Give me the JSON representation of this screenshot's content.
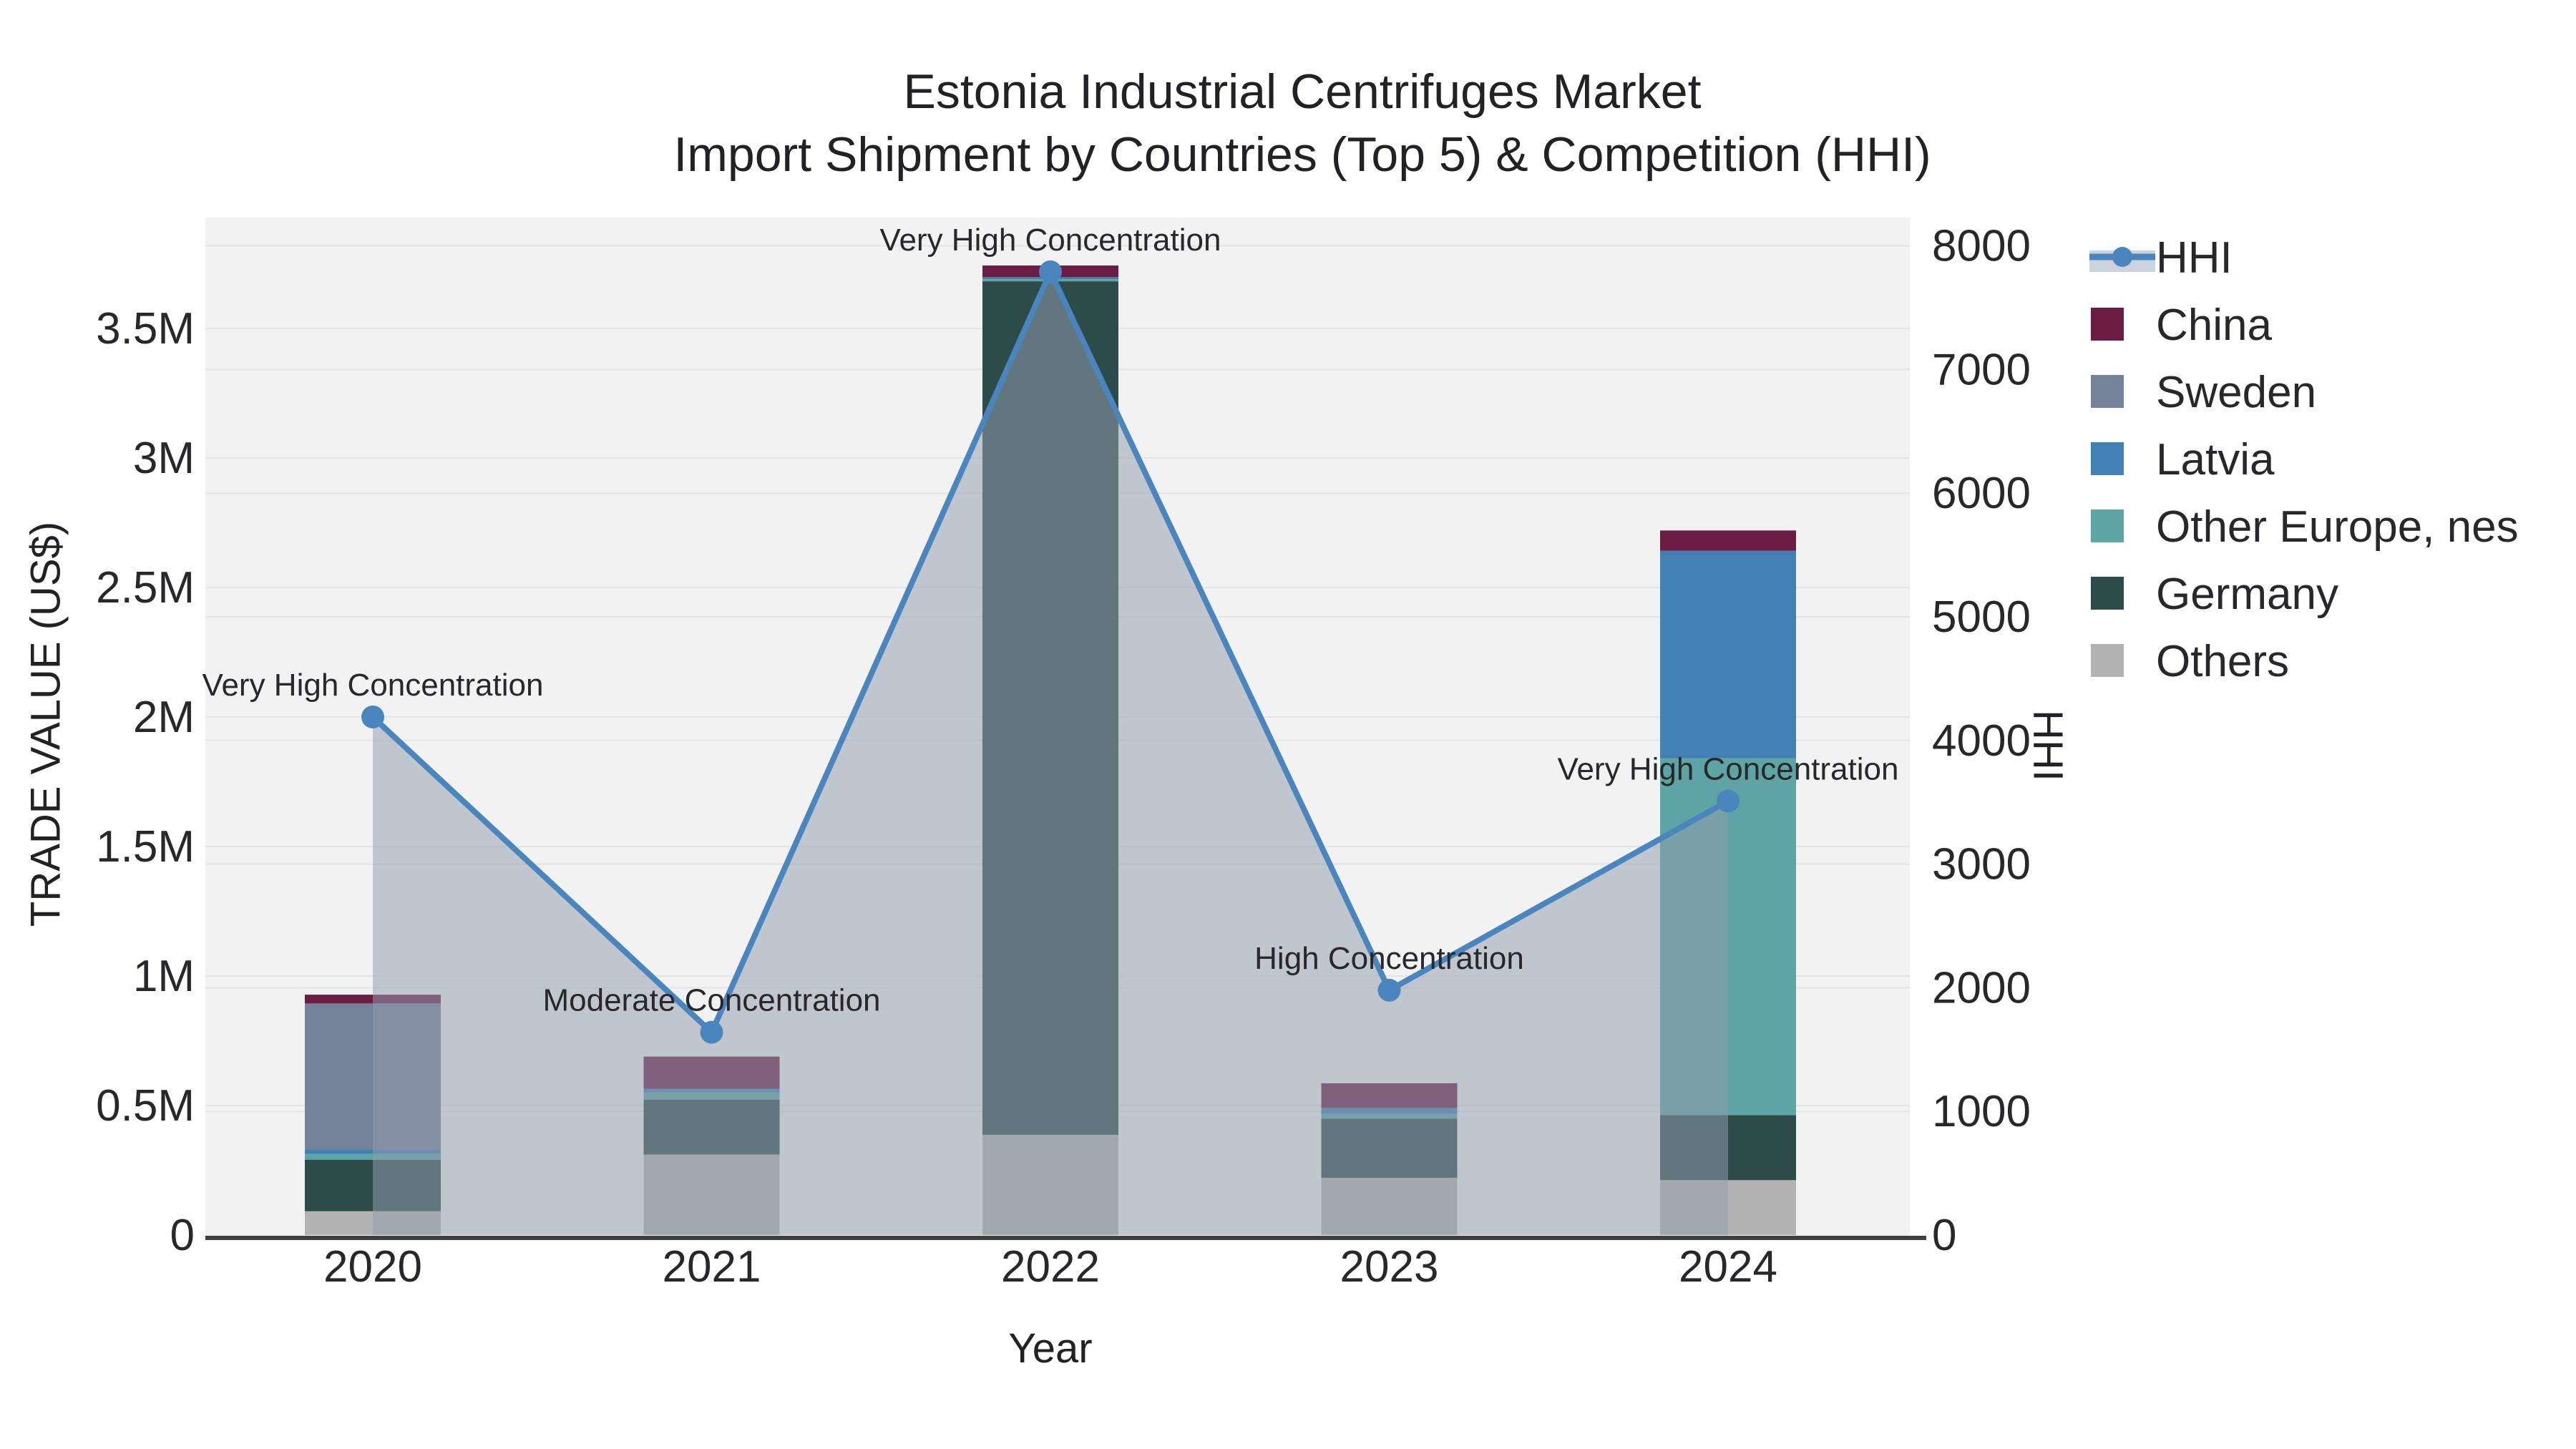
{
  "header": {
    "title_line1": "Estonia Industrial Centrifuges Market",
    "title_line2": "Import Shipment by Countries (Top 5) & Competition (HHI)"
  },
  "chart_data": {
    "type": "bar",
    "subtype": "stacked-bar-with-line",
    "title": "Estonia Industrial Centrifuges Market",
    "subtitle": "Import Shipment by Countries (Top 5) & Competition (HHI)",
    "xlabel": "Year",
    "categories": [
      "2020",
      "2021",
      "2022",
      "2023",
      "2024"
    ],
    "y_left": {
      "label": "TRADE VALUE (US$)",
      "tick_labels": [
        "0",
        "0.5M",
        "1M",
        "1.5M",
        "2M",
        "2.5M",
        "3M",
        "3.5M"
      ],
      "tick_values": [
        0,
        500000,
        1000000,
        1500000,
        2000000,
        2500000,
        3000000,
        3500000
      ],
      "ylim": [
        0,
        3930000
      ],
      "grid": true
    },
    "y_right": {
      "label": "HHI",
      "tick_labels": [
        "0",
        "1000",
        "2000",
        "3000",
        "4000",
        "5000",
        "6000",
        "7000",
        "8000"
      ],
      "tick_values": [
        0,
        1000,
        2000,
        3000,
        4000,
        5000,
        6000,
        7000,
        8000
      ],
      "ylim": [
        0,
        8230
      ],
      "grid": true
    },
    "series": [
      {
        "name": "Others",
        "color": "#b3b3b3",
        "values": [
          92000,
          311000,
          387000,
          221000,
          212000
        ]
      },
      {
        "name": "Germany",
        "color": "#2d4c49",
        "values": [
          199000,
          212000,
          3295000,
          228000,
          251000
        ]
      },
      {
        "name": "Other Europe, nes",
        "color": "#5fa4a4",
        "values": [
          22000,
          28000,
          8000,
          19000,
          1378000
        ]
      },
      {
        "name": "Latvia",
        "color": "#4280b4",
        "values": [
          17000,
          14000,
          8000,
          23000,
          801000
        ]
      },
      {
        "name": "Sweden",
        "color": "#74839a",
        "values": [
          564000,
          0,
          0,
          0,
          0
        ]
      },
      {
        "name": "China",
        "color": "#6c1d43",
        "values": [
          34000,
          124000,
          45000,
          95000,
          78000
        ]
      }
    ],
    "hhi_line": {
      "name": "HHI",
      "color": "#4a85bd",
      "area_color": "rgba(146,158,173,0.52)",
      "values": [
        4190,
        1640,
        7790,
        1980,
        3510
      ]
    },
    "annotations": [
      {
        "category": "2020",
        "text": "Very High Concentration"
      },
      {
        "category": "2021",
        "text": "Moderate Concentration"
      },
      {
        "category": "2022",
        "text": "Very High Concentration"
      },
      {
        "category": "2023",
        "text": "High Concentration"
      },
      {
        "category": "2024",
        "text": "Very High Concentration"
      }
    ],
    "legend": {
      "position": "right",
      "entries": [
        "HHI",
        "China",
        "Sweden",
        "Latvia",
        "Other Europe, nes",
        "Germany",
        "Others"
      ]
    },
    "colors": {
      "plot_background": "#f2f2f2",
      "gridline": "#e4e4e4",
      "axis_line": "#3f3f3f",
      "text": "#28282c",
      "hhi_legend_band": "#ccd3dd"
    }
  }
}
